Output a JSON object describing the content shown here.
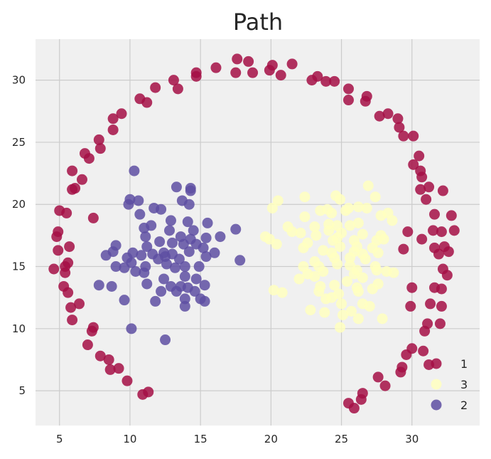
{
  "chart_data": {
    "type": "scatter",
    "title": "Path",
    "xlabel": "",
    "ylabel": "",
    "xlim": [
      3.3,
      34.8
    ],
    "ylim": [
      2.2,
      33.3
    ],
    "xticks": [
      5,
      10,
      15,
      20,
      25,
      30
    ],
    "yticks": [
      5,
      10,
      15,
      20,
      25,
      30
    ],
    "grid": true,
    "background": "#f0f0f0",
    "grid_color": "#cccccc",
    "legend_position": "lower-right",
    "legend_order": [
      "1",
      "3",
      "2"
    ],
    "series": [
      {
        "name": "1",
        "color": "#a50f45",
        "points": [
          [
            17.6,
            31.7
          ],
          [
            18.4,
            31.5
          ],
          [
            21.5,
            31.3
          ],
          [
            20.1,
            31.2
          ],
          [
            19.9,
            30.8
          ],
          [
            16.1,
            31.0
          ],
          [
            18.7,
            30.6
          ],
          [
            17.5,
            30.6
          ],
          [
            20.7,
            30.4
          ],
          [
            14.7,
            30.6
          ],
          [
            14.7,
            30.3
          ],
          [
            23.3,
            30.3
          ],
          [
            22.9,
            30.0
          ],
          [
            24.5,
            29.9
          ],
          [
            23.9,
            29.9
          ],
          [
            13.1,
            30.0
          ],
          [
            11.8,
            29.4
          ],
          [
            13.4,
            29.3
          ],
          [
            25.5,
            29.3
          ],
          [
            26.8,
            28.7
          ],
          [
            10.7,
            28.5
          ],
          [
            11.2,
            28.2
          ],
          [
            25.5,
            28.4
          ],
          [
            26.7,
            28.3
          ],
          [
            9.4,
            27.3
          ],
          [
            8.8,
            26.9
          ],
          [
            28.3,
            27.3
          ],
          [
            27.7,
            27.1
          ],
          [
            29.0,
            26.9
          ],
          [
            8.8,
            26.0
          ],
          [
            29.1,
            26.2
          ],
          [
            29.4,
            25.5
          ],
          [
            7.8,
            25.2
          ],
          [
            30.1,
            25.5
          ],
          [
            7.9,
            24.5
          ],
          [
            6.8,
            24.1
          ],
          [
            7.1,
            23.7
          ],
          [
            30.5,
            23.9
          ],
          [
            30.1,
            23.2
          ],
          [
            30.6,
            22.7
          ],
          [
            5.9,
            22.7
          ],
          [
            30.7,
            22.2
          ],
          [
            6.6,
            22.0
          ],
          [
            31.2,
            21.4
          ],
          [
            5.9,
            21.2
          ],
          [
            32.2,
            21.1
          ],
          [
            30.6,
            21.2
          ],
          [
            6.1,
            21.3
          ],
          [
            31.0,
            20.4
          ],
          [
            5.0,
            19.5
          ],
          [
            5.5,
            19.3
          ],
          [
            31.6,
            19.2
          ],
          [
            32.8,
            19.1
          ],
          [
            7.4,
            18.9
          ],
          [
            4.9,
            17.8
          ],
          [
            31.5,
            17.9
          ],
          [
            32.1,
            17.8
          ],
          [
            33.0,
            17.9
          ],
          [
            29.7,
            17.8
          ],
          [
            4.8,
            17.4
          ],
          [
            30.7,
            17.2
          ],
          [
            32.3,
            16.6
          ],
          [
            32.6,
            16.2
          ],
          [
            5.7,
            16.6
          ],
          [
            31.6,
            16.5
          ],
          [
            4.9,
            16.3
          ],
          [
            29.4,
            16.4
          ],
          [
            31.9,
            16.0
          ],
          [
            5.6,
            15.3
          ],
          [
            5.4,
            15.0
          ],
          [
            4.6,
            14.8
          ],
          [
            5.4,
            14.5
          ],
          [
            32.2,
            14.8
          ],
          [
            32.5,
            14.3
          ],
          [
            5.3,
            13.4
          ],
          [
            31.6,
            13.3
          ],
          [
            32.1,
            13.2
          ],
          [
            5.6,
            12.9
          ],
          [
            30.0,
            13.3
          ],
          [
            5.8,
            11.7
          ],
          [
            6.4,
            12.0
          ],
          [
            31.3,
            12.0
          ],
          [
            29.9,
            11.8
          ],
          [
            32.1,
            11.8
          ],
          [
            5.9,
            10.7
          ],
          [
            31.1,
            10.4
          ],
          [
            32.0,
            10.4
          ],
          [
            7.4,
            10.1
          ],
          [
            7.3,
            9.8
          ],
          [
            30.9,
            9.8
          ],
          [
            7.0,
            8.7
          ],
          [
            30.8,
            8.2
          ],
          [
            30.0,
            8.4
          ],
          [
            29.6,
            7.9
          ],
          [
            7.9,
            7.8
          ],
          [
            8.5,
            7.5
          ],
          [
            31.2,
            7.1
          ],
          [
            29.3,
            6.9
          ],
          [
            8.6,
            6.7
          ],
          [
            9.2,
            6.8
          ],
          [
            29.2,
            6.5
          ],
          [
            27.6,
            6.1
          ],
          [
            9.8,
            5.8
          ],
          [
            28.1,
            5.4
          ],
          [
            26.5,
            4.8
          ],
          [
            11.3,
            4.9
          ],
          [
            10.9,
            4.7
          ],
          [
            26.4,
            4.3
          ],
          [
            25.5,
            4.0
          ],
          [
            25.9,
            3.6
          ]
        ]
      },
      {
        "name": "3",
        "color": "#ffffbf",
        "points": [
          [
            26.9,
            21.5
          ],
          [
            27.4,
            20.6
          ],
          [
            24.6,
            20.7
          ],
          [
            22.4,
            20.6
          ],
          [
            24.9,
            20.4
          ],
          [
            20.5,
            20.3
          ],
          [
            26.2,
            19.8
          ],
          [
            25.5,
            19.7
          ],
          [
            26.8,
            19.7
          ],
          [
            20.1,
            19.7
          ],
          [
            23.5,
            19.5
          ],
          [
            24.0,
            19.6
          ],
          [
            25.3,
            19.5
          ],
          [
            28.3,
            19.3
          ],
          [
            27.8,
            19.1
          ],
          [
            24.3,
            19.3
          ],
          [
            22.4,
            19.0
          ],
          [
            28.6,
            18.7
          ],
          [
            26.2,
            18.5
          ],
          [
            24.1,
            18.4
          ],
          [
            21.2,
            18.2
          ],
          [
            23.1,
            18.2
          ],
          [
            24.7,
            18.3
          ],
          [
            25.6,
            18.3
          ],
          [
            21.5,
            17.8
          ],
          [
            22.1,
            17.7
          ],
          [
            24.1,
            17.9
          ],
          [
            26.5,
            17.6
          ],
          [
            27.8,
            17.5
          ],
          [
            25.0,
            17.7
          ],
          [
            23.2,
            17.5
          ],
          [
            24.7,
            17.3
          ],
          [
            28.0,
            17.2
          ],
          [
            19.6,
            17.4
          ],
          [
            19.9,
            17.2
          ],
          [
            24.4,
            17.1
          ],
          [
            25.9,
            17.1
          ],
          [
            27.5,
            17.1
          ],
          [
            22.6,
            16.9
          ],
          [
            20.4,
            16.8
          ],
          [
            26.1,
            16.6
          ],
          [
            24.9,
            16.6
          ],
          [
            27.2,
            16.5
          ],
          [
            22.3,
            16.5
          ],
          [
            23.7,
            16.3
          ],
          [
            25.9,
            16.2
          ],
          [
            27.6,
            16.1
          ],
          [
            24.3,
            16.1
          ],
          [
            26.5,
            16.0
          ],
          [
            25.6,
            15.7
          ],
          [
            26.7,
            15.6
          ],
          [
            24.5,
            15.7
          ],
          [
            23.1,
            15.4
          ],
          [
            25.6,
            15.1
          ],
          [
            27.4,
            15.0
          ],
          [
            22.3,
            15.0
          ],
          [
            23.4,
            15.0
          ],
          [
            24.7,
            15.2
          ],
          [
            22.6,
            14.4
          ],
          [
            23.7,
            14.6
          ],
          [
            25.9,
            14.4
          ],
          [
            26.1,
            14.7
          ],
          [
            27.5,
            14.7
          ],
          [
            28.2,
            14.6
          ],
          [
            28.7,
            14.5
          ],
          [
            26.5,
            14.1
          ],
          [
            23.1,
            14.2
          ],
          [
            22.0,
            14.0
          ],
          [
            25.4,
            13.8
          ],
          [
            27.6,
            13.6
          ],
          [
            24.5,
            13.5
          ],
          [
            23.5,
            13.4
          ],
          [
            26.1,
            13.3
          ],
          [
            27.2,
            13.2
          ],
          [
            26.2,
            13.0
          ],
          [
            20.8,
            12.9
          ],
          [
            20.2,
            13.1
          ],
          [
            23.4,
            13.0
          ],
          [
            24.8,
            12.8
          ],
          [
            24.3,
            12.5
          ],
          [
            23.9,
            12.4
          ],
          [
            26.5,
            12.0
          ],
          [
            25.0,
            12.0
          ],
          [
            27.0,
            11.8
          ],
          [
            22.8,
            11.5
          ],
          [
            25.7,
            11.4
          ],
          [
            23.8,
            11.3
          ],
          [
            25.1,
            11.1
          ],
          [
            26.2,
            10.8
          ],
          [
            27.9,
            10.8
          ],
          [
            24.9,
            10.1
          ]
        ]
      },
      {
        "name": "2",
        "color": "#5e4fa2",
        "points": [
          [
            10.3,
            22.7
          ],
          [
            13.3,
            21.4
          ],
          [
            14.3,
            21.3
          ],
          [
            14.3,
            21.1
          ],
          [
            13.7,
            20.3
          ],
          [
            10.0,
            20.4
          ],
          [
            10.6,
            20.3
          ],
          [
            9.9,
            20.0
          ],
          [
            14.2,
            20.0
          ],
          [
            11.7,
            19.7
          ],
          [
            12.2,
            19.6
          ],
          [
            10.7,
            19.2
          ],
          [
            14.1,
            18.6
          ],
          [
            12.9,
            18.7
          ],
          [
            11.5,
            18.3
          ],
          [
            15.5,
            18.5
          ],
          [
            11.0,
            18.1
          ],
          [
            14.5,
            17.9
          ],
          [
            17.5,
            18.0
          ],
          [
            12.8,
            17.9
          ],
          [
            11.1,
            17.4
          ],
          [
            14.3,
            17.2
          ],
          [
            13.6,
            17.4
          ],
          [
            16.4,
            17.4
          ],
          [
            15.4,
            17.3
          ],
          [
            12.1,
            17.0
          ],
          [
            13.0,
            16.9
          ],
          [
            14.7,
            16.8
          ],
          [
            13.8,
            16.8
          ],
          [
            11.2,
            16.6
          ],
          [
            9.0,
            16.7
          ],
          [
            15.2,
            16.5
          ],
          [
            8.8,
            16.2
          ],
          [
            10.2,
            16.1
          ],
          [
            14.2,
            16.2
          ],
          [
            11.6,
            16.0
          ],
          [
            12.4,
            16.1
          ],
          [
            13.0,
            16.0
          ],
          [
            10.8,
            15.9
          ],
          [
            16.0,
            16.1
          ],
          [
            8.3,
            15.9
          ],
          [
            9.8,
            15.7
          ],
          [
            12.5,
            15.8
          ],
          [
            15.4,
            15.8
          ],
          [
            12.0,
            15.6
          ],
          [
            13.5,
            15.6
          ],
          [
            17.8,
            15.5
          ],
          [
            10.1,
            15.3
          ],
          [
            12.6,
            15.2
          ],
          [
            11.1,
            15.0
          ],
          [
            9.6,
            14.9
          ],
          [
            13.2,
            14.9
          ],
          [
            13.9,
            15.0
          ],
          [
            14.9,
            15.0
          ],
          [
            9.0,
            15.0
          ],
          [
            10.4,
            14.6
          ],
          [
            11.0,
            14.5
          ],
          [
            13.9,
            14.2
          ],
          [
            14.7,
            14.0
          ],
          [
            12.4,
            14.0
          ],
          [
            11.2,
            13.6
          ],
          [
            13.6,
            13.4
          ],
          [
            8.7,
            13.4
          ],
          [
            14.1,
            13.3
          ],
          [
            15.3,
            13.5
          ],
          [
            12.9,
            13.4
          ],
          [
            7.8,
            13.5
          ],
          [
            13.3,
            13.0
          ],
          [
            12.2,
            13.0
          ],
          [
            14.6,
            13.0
          ],
          [
            15.0,
            12.4
          ],
          [
            11.8,
            12.2
          ],
          [
            15.3,
            12.2
          ],
          [
            13.9,
            12.4
          ],
          [
            9.6,
            12.3
          ],
          [
            13.9,
            11.8
          ],
          [
            10.1,
            10.0
          ],
          [
            12.5,
            9.1
          ]
        ]
      }
    ]
  }
}
